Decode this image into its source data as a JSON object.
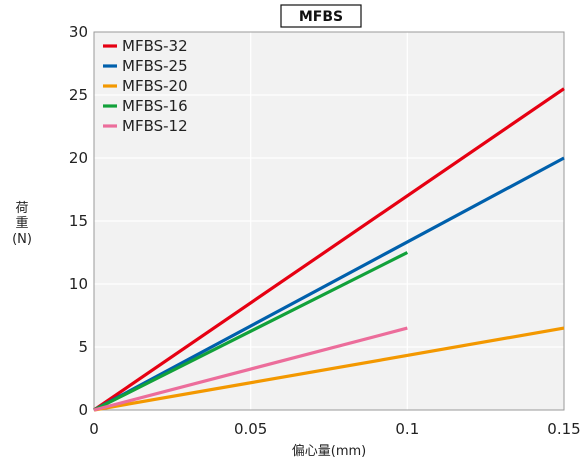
{
  "chart_data": {
    "type": "line",
    "title": "MFBS",
    "xlabel": "偏心量(mm)",
    "ylabel": "荷重 (N)",
    "ylabel_lines": [
      "荷",
      "重",
      "(N)"
    ],
    "xlim": [
      0,
      0.15
    ],
    "ylim": [
      0,
      30
    ],
    "xticks": [
      0,
      0.05,
      0.1,
      0.15
    ],
    "xtick_labels": [
      "0",
      "0.05",
      "0.1",
      "0.15"
    ],
    "yticks": [
      0,
      5,
      10,
      15,
      20,
      25,
      30
    ],
    "ytick_labels": [
      "0",
      "5",
      "10",
      "15",
      "20",
      "25",
      "30"
    ],
    "grid": true,
    "legend_position": "top-left",
    "series": [
      {
        "name": "MFBS-32",
        "color": "#e60012",
        "x": [
          0,
          0.15
        ],
        "y": [
          0,
          25.5
        ]
      },
      {
        "name": "MFBS-25",
        "color": "#0060ac",
        "x": [
          0,
          0.15
        ],
        "y": [
          0,
          20
        ]
      },
      {
        "name": "MFBS-20",
        "color": "#f39800",
        "x": [
          0,
          0.15
        ],
        "y": [
          0,
          6.5
        ]
      },
      {
        "name": "MFBS-16",
        "color": "#12a13a",
        "x": [
          0,
          0.1
        ],
        "y": [
          0,
          12.5
        ]
      },
      {
        "name": "MFBS-12",
        "color": "#ec6d9b",
        "x": [
          0,
          0.1
        ],
        "y": [
          0,
          6.5
        ]
      }
    ]
  }
}
